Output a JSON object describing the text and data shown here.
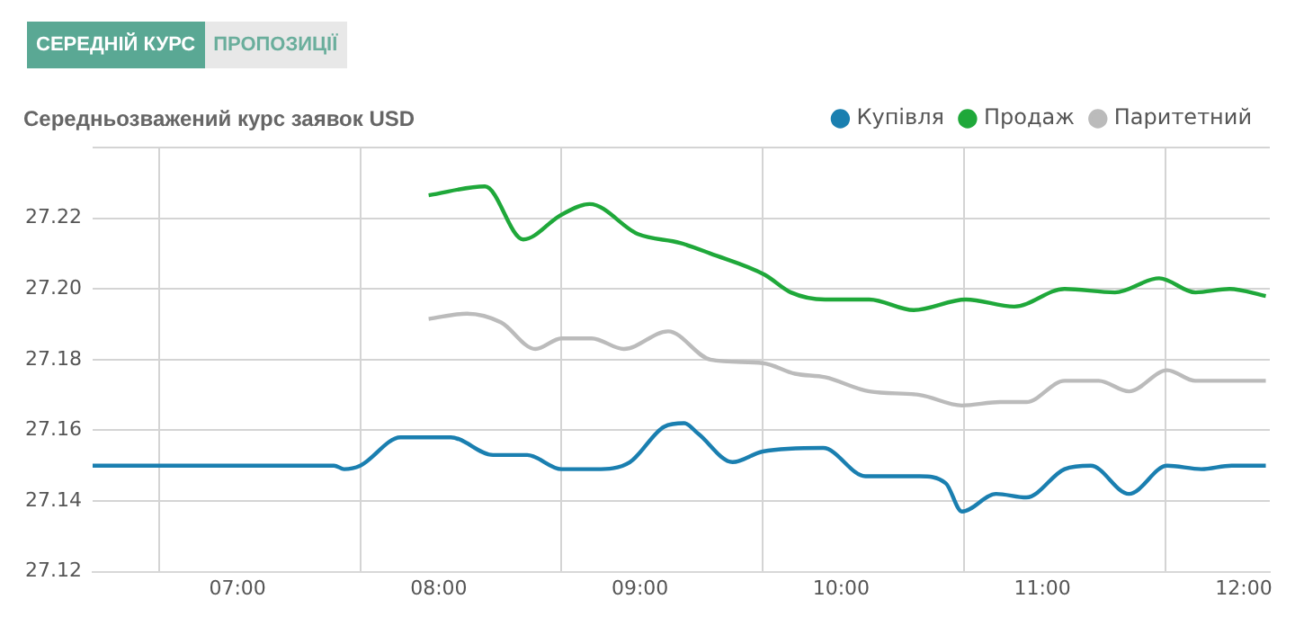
{
  "chart_data": {
    "type": "line",
    "title": "Середньозважений курс заявок USD",
    "annotations": [
      "СЕРЕДНІЙ КУРС",
      "ПРОПОЗИЦІЇ"
    ],
    "legend": "top right",
    "grid": true,
    "marker": "none",
    "line_style": "solid",
    "xlim": [
      6.28,
      12.13
    ],
    "xticks": [
      {
        "value": 6.61,
        "label": null
      },
      {
        "value": 7,
        "label": "07:00"
      },
      {
        "value": 7.61,
        "label": null
      },
      {
        "value": 8,
        "label": "08:00"
      },
      {
        "value": 8.61,
        "label": null
      },
      {
        "value": 9,
        "label": "09:00"
      },
      {
        "value": 9.61,
        "label": null
      },
      {
        "value": 10,
        "label": "10:00"
      },
      {
        "value": 10.61,
        "label": null
      },
      {
        "value": 11,
        "label": "11:00"
      },
      {
        "value": 11.61,
        "label": null
      },
      {
        "value": 12,
        "label": "12:00"
      }
    ],
    "ylim": [
      27.12,
      27.24
    ],
    "yticks": [
      27.12,
      27.14,
      27.16,
      27.18,
      {
        "value": 27.2,
        "label": "27.20"
      },
      27.22,
      {
        "value": 27.24,
        "label": null
      }
    ],
    "series": [
      {
        "name": "Купівля",
        "color": "#1a7fb0",
        "x": [
          6.28,
          7.48,
          7.53,
          7.61,
          7.81,
          8.06,
          8.27,
          8.44,
          8.61,
          8.78,
          8.95,
          9.12,
          9.22,
          9.29,
          9.46,
          9.61,
          9.91,
          10.12,
          10.39,
          10.52,
          10.6,
          10.77,
          10.92,
          11.11,
          11.24,
          11.43,
          11.62,
          11.79,
          11.94,
          12.11
        ],
        "values": [
          27.15,
          27.15,
          27.149,
          27.15,
          27.158,
          27.158,
          27.153,
          27.153,
          27.149,
          27.149,
          27.151,
          27.161,
          27.162,
          27.159,
          27.151,
          27.154,
          27.155,
          27.147,
          27.147,
          27.145,
          27.137,
          27.142,
          27.141,
          27.149,
          27.15,
          27.142,
          27.15,
          27.149,
          27.15,
          27.15
        ]
      },
      {
        "name": "Продаж",
        "color": "#1fa83a",
        "x": [
          7.95,
          8.23,
          8.42,
          8.61,
          8.75,
          8.99,
          9.2,
          9.35,
          9.62,
          9.75,
          9.92,
          10.14,
          10.36,
          10.62,
          10.86,
          11.11,
          11.36,
          11.58,
          11.76,
          11.93,
          12.11
        ],
        "values": [
          27.2265,
          27.229,
          27.214,
          27.221,
          27.224,
          27.2155,
          27.213,
          27.21,
          27.204,
          27.199,
          27.197,
          27.197,
          27.194,
          27.197,
          27.195,
          27.2,
          27.199,
          27.203,
          27.199,
          27.2,
          27.198
        ]
      },
      {
        "name": "Паритетний",
        "color": "#bbbbbb",
        "x": [
          7.95,
          8.14,
          8.31,
          8.48,
          8.61,
          8.76,
          8.92,
          9.14,
          9.35,
          9.61,
          9.77,
          9.92,
          10.14,
          10.39,
          10.6,
          10.79,
          10.92,
          11.11,
          11.28,
          11.43,
          11.62,
          11.76,
          12.11
        ],
        "values": [
          27.1915,
          27.193,
          27.1905,
          27.183,
          27.186,
          27.186,
          27.183,
          27.188,
          27.18,
          27.179,
          27.176,
          27.175,
          27.171,
          27.17,
          27.167,
          27.168,
          27.168,
          27.174,
          27.174,
          27.171,
          27.177,
          27.174,
          27.174
        ]
      }
    ]
  }
}
